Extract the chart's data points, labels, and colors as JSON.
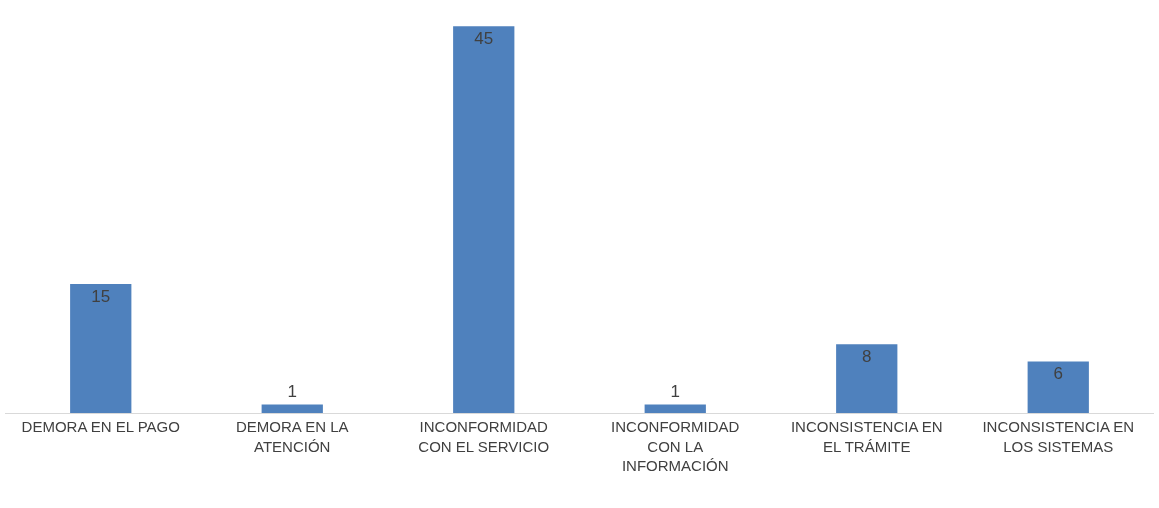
{
  "chart_data": {
    "type": "bar",
    "categories": [
      "DEMORA EN EL PAGO",
      "DEMORA EN LA ATENCIÓN",
      "INCONFORMIDAD CON EL SERVICIO",
      "INCONFORMIDAD CON LA INFORMACIÓN",
      "INCONSISTENCIA EN EL TRÁMITE",
      "INCONSISTENCIA EN LOS SISTEMAS"
    ],
    "values": [
      15,
      1,
      45,
      1,
      8,
      6
    ],
    "color": "#4f81bd",
    "data_labels": true
  }
}
